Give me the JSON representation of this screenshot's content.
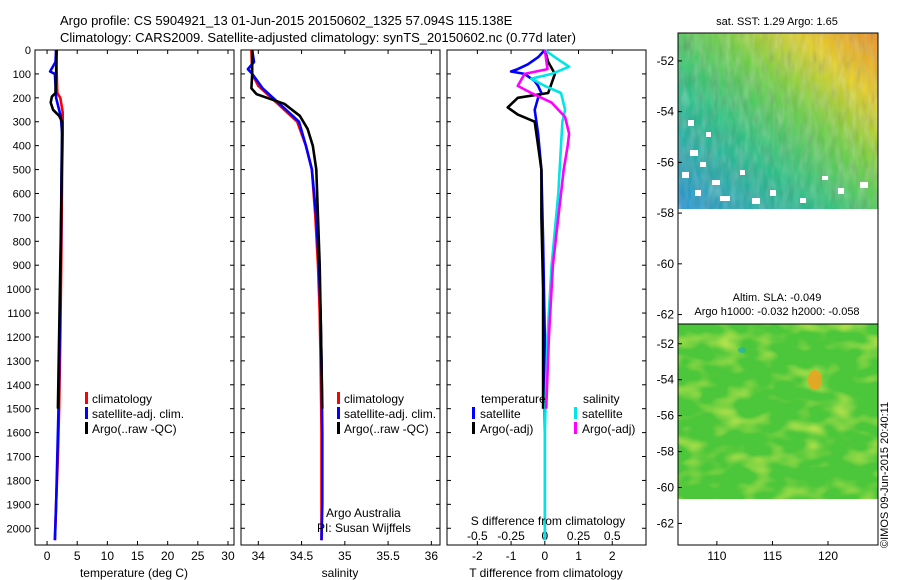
{
  "header": {
    "line1": "Argo profile: CS 5904921_13 01-Jun-2015 20150602_1325 57.094S 115.138E",
    "line2": "Climatology: CARS2009. Satellite-adjusted climatology: synTS_20150602.nc (0.77d later)"
  },
  "credit": "©IMOS 09-Jun-2015 20:40:11",
  "colors": {
    "climatology": "#ff0000",
    "satellite": "#0000ff",
    "argo": "#000000",
    "sat_salinity": "#00e5e5",
    "argo_salinity": "#ff00ff"
  },
  "chart_data": [
    {
      "type": "line",
      "id": "temperature",
      "xlabel": "temperature (deg C)",
      "xlim": [
        -2,
        31
      ],
      "xticks": [
        "0",
        "5",
        "10",
        "15",
        "20",
        "25",
        "30"
      ],
      "ylim": [
        0,
        2070
      ],
      "yticks": [
        "0",
        "100",
        "200",
        "300",
        "400",
        "500",
        "600",
        "700",
        "800",
        "900",
        "1000",
        "1100",
        "1200",
        "1300",
        "1400",
        "1500",
        "1600",
        "1700",
        "1800",
        "1900",
        "2000"
      ],
      "legend": [
        "climatology",
        "satellite-adj. clim.",
        "Argo(..raw -QC)"
      ],
      "series": [
        {
          "name": "climatology",
          "role": "climatology",
          "points": [
            [
              1.5,
              0
            ],
            [
              1.6,
              100
            ],
            [
              1.7,
              180
            ],
            [
              2.2,
              200
            ],
            [
              2.6,
              260
            ],
            [
              2.6,
              350
            ],
            [
              2.5,
              500
            ],
            [
              2.4,
              800
            ],
            [
              2.3,
              1000
            ],
            [
              2.2,
              1200
            ],
            [
              2.0,
              1500
            ],
            [
              1.8,
              1700
            ],
            [
              1.5,
              1900
            ],
            [
              1.3,
              2050
            ]
          ]
        },
        {
          "name": "satellite-adj. clim.",
          "role": "satellite",
          "points": [
            [
              1.5,
              0
            ],
            [
              1.4,
              50
            ],
            [
              0.5,
              90
            ],
            [
              1.3,
              100
            ],
            [
              1.5,
              200
            ],
            [
              2.3,
              280
            ],
            [
              2.5,
              350
            ],
            [
              2.4,
              500
            ],
            [
              2.3,
              800
            ],
            [
              2.2,
              1000
            ],
            [
              2.1,
              1200
            ],
            [
              1.9,
              1500
            ],
            [
              1.7,
              1700
            ],
            [
              1.5,
              1900
            ],
            [
              1.3,
              2050
            ]
          ]
        },
        {
          "name": "Argo(..raw -QC)",
          "role": "argo",
          "points": [
            [
              1.6,
              0
            ],
            [
              1.5,
              100
            ],
            [
              1.4,
              180
            ],
            [
              0.8,
              195
            ],
            [
              0.6,
              220
            ],
            [
              1.0,
              250
            ],
            [
              2.0,
              275
            ],
            [
              2.5,
              300
            ],
            [
              2.5,
              400
            ],
            [
              2.4,
              600
            ],
            [
              2.2,
              900
            ],
            [
              2.0,
              1200
            ],
            [
              1.8,
              1500
            ]
          ]
        }
      ]
    },
    {
      "type": "line",
      "id": "salinity",
      "xlabel": "salinity",
      "xlim": [
        33.8,
        36.1
      ],
      "xticks": [
        "34",
        "34.5",
        "35",
        "35.5",
        "36"
      ],
      "ylim": [
        0,
        2070
      ],
      "legend": [
        "climatology",
        "satellite-adj. clim.",
        "Argo(..raw -QC)"
      ],
      "annotation": [
        "Argo Australia",
        "PI: Susan Wijffels"
      ],
      "series": [
        {
          "name": "climatology",
          "role": "climatology",
          "points": [
            [
              33.92,
              0
            ],
            [
              33.93,
              100
            ],
            [
              34.0,
              150
            ],
            [
              34.15,
              200
            ],
            [
              34.3,
              250
            ],
            [
              34.45,
              300
            ],
            [
              34.55,
              400
            ],
            [
              34.62,
              500
            ],
            [
              34.66,
              700
            ],
            [
              34.69,
              900
            ],
            [
              34.71,
              1100
            ],
            [
              34.72,
              1300
            ],
            [
              34.73,
              1600
            ],
            [
              34.73,
              1900
            ],
            [
              34.73,
              2050
            ]
          ]
        },
        {
          "name": "satellite-adj. clim.",
          "role": "satellite",
          "points": [
            [
              33.93,
              0
            ],
            [
              33.95,
              50
            ],
            [
              33.88,
              80
            ],
            [
              33.93,
              100
            ],
            [
              34.05,
              160
            ],
            [
              34.2,
              210
            ],
            [
              34.35,
              260
            ],
            [
              34.47,
              300
            ],
            [
              34.55,
              400
            ],
            [
              34.62,
              500
            ],
            [
              34.67,
              700
            ],
            [
              34.7,
              900
            ],
            [
              34.72,
              1100
            ],
            [
              34.73,
              1300
            ],
            [
              34.74,
              1600
            ],
            [
              34.74,
              1900
            ],
            [
              34.73,
              2050
            ]
          ]
        },
        {
          "name": "Argo(..raw -QC)",
          "role": "argo",
          "points": [
            [
              33.93,
              0
            ],
            [
              33.93,
              100
            ],
            [
              33.92,
              160
            ],
            [
              33.98,
              185
            ],
            [
              34.3,
              225
            ],
            [
              34.48,
              275
            ],
            [
              34.57,
              330
            ],
            [
              34.63,
              400
            ],
            [
              34.67,
              500
            ],
            [
              34.69,
              700
            ],
            [
              34.71,
              900
            ],
            [
              34.72,
              1100
            ],
            [
              34.73,
              1300
            ],
            [
              34.74,
              1500
            ]
          ]
        }
      ]
    },
    {
      "type": "line",
      "id": "differences",
      "xlabel": "T difference from climatology",
      "xlabel_top": "S difference from climatology",
      "xlim": [
        -2.9,
        3.0
      ],
      "xticks": [
        "-2",
        "-1",
        "0",
        "1",
        "2"
      ],
      "s_ticks": [
        "-0.5",
        "-0.25",
        "0",
        "0.25",
        "0.5"
      ],
      "ylim": [
        0,
        2070
      ],
      "legend_temperature": {
        "title": "temperature",
        "items": [
          "satellite",
          "Argo(-adj)"
        ]
      },
      "legend_salinity": {
        "title": "salinity",
        "items": [
          "satellite",
          "Argo(-adj)"
        ]
      },
      "series": [
        {
          "name": "satellite",
          "group": "temperature",
          "role": "satellite",
          "points": [
            [
              0,
              0
            ],
            [
              -0.2,
              30
            ],
            [
              -0.5,
              60
            ],
            [
              -0.8,
              80
            ],
            [
              -1.0,
              90
            ],
            [
              -0.6,
              100
            ],
            [
              -0.3,
              130
            ],
            [
              -0.2,
              150
            ],
            [
              -0.1,
              180
            ],
            [
              -0.2,
              200
            ],
            [
              -0.3,
              250
            ],
            [
              -0.2,
              350
            ],
            [
              -0.1,
              500
            ],
            [
              -0.05,
              800
            ],
            [
              0,
              1200
            ],
            [
              0,
              1600
            ],
            [
              0,
              2050
            ]
          ]
        },
        {
          "name": "Argo(-adj)",
          "group": "temperature",
          "role": "argo",
          "points": [
            [
              0,
              0
            ],
            [
              0.1,
              50
            ],
            [
              0.3,
              100
            ],
            [
              0.1,
              180
            ],
            [
              -0.8,
              200
            ],
            [
              -1.1,
              240
            ],
            [
              -0.8,
              270
            ],
            [
              -0.3,
              300
            ],
            [
              -0.2,
              400
            ],
            [
              -0.1,
              500
            ],
            [
              -0.1,
              700
            ],
            [
              -0.05,
              1000
            ],
            [
              -0.05,
              1300
            ],
            [
              -0.05,
              1500
            ]
          ]
        },
        {
          "name": "satellite",
          "group": "salinity",
          "role": "sat_salinity",
          "points": [
            [
              0,
              0
            ],
            [
              0.1,
              40
            ],
            [
              0.18,
              70
            ],
            [
              0.05,
              100
            ],
            [
              -0.1,
              120
            ],
            [
              0.0,
              150
            ],
            [
              0.12,
              180
            ],
            [
              0.15,
              250
            ],
            [
              0.13,
              300
            ],
            [
              0.12,
              400
            ],
            [
              0.1,
              600
            ],
            [
              0.05,
              900
            ],
            [
              0.02,
              1200
            ],
            [
              0,
              1600
            ],
            [
              0,
              2050
            ]
          ]
        },
        {
          "name": "Argo(-adj)",
          "group": "salinity",
          "role": "argo_salinity",
          "points": [
            [
              0,
              0
            ],
            [
              0.02,
              80
            ],
            [
              -0.15,
              100
            ],
            [
              -0.2,
              150
            ],
            [
              -0.1,
              180
            ],
            [
              0.05,
              220
            ],
            [
              0.15,
              280
            ],
            [
              0.18,
              350
            ],
            [
              0.17,
              400
            ],
            [
              0.14,
              500
            ],
            [
              0.1,
              700
            ],
            [
              0.06,
              900
            ],
            [
              0.03,
              1200
            ],
            [
              0.01,
              1500
            ]
          ]
        }
      ]
    },
    {
      "type": "heatmap",
      "id": "sst_map",
      "title": "sat. SST: 1.29 Argo: 1.65",
      "xlim": [
        106.5,
        124.5
      ],
      "ylim": [
        -63.2,
        -50.9
      ],
      "xticks": [
        "110",
        "115",
        "120"
      ],
      "yticks": [
        "-52",
        "-54",
        "-56",
        "-58",
        "-60",
        "-62"
      ],
      "data_extent_south": -60
    },
    {
      "type": "heatmap",
      "id": "sla_map",
      "title": [
        "Altim. SLA: -0.049",
        "Argo h1000: -0.032 h2000: -0.058"
      ],
      "xlim": [
        106.5,
        124.5
      ],
      "ylim": [
        -63.2,
        -50.9
      ],
      "xticks": [
        "110",
        "115",
        "120"
      ],
      "yticks": [
        "-52",
        "-54",
        "-56",
        "-58",
        "-60",
        "-62"
      ],
      "data_extent_south": -60
    }
  ]
}
